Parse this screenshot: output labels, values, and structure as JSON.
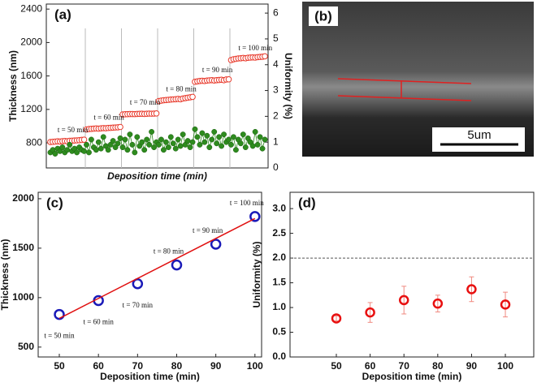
{
  "chart_data": [
    {
      "type": "dual",
      "label": "(a)",
      "xlabel": "Deposition time (min)",
      "ylabel": "Thickness (nm)",
      "y2label": "Uniformity (%)",
      "ylim": [
        500,
        2460
      ],
      "yticks": [
        800,
        1200,
        1600,
        2000,
        2400
      ],
      "y2lim": [
        0,
        6.35
      ],
      "y2ticks": [
        0,
        1,
        2,
        3,
        4,
        5,
        6
      ],
      "annotations": [
        "t = 50 min",
        "t = 60 min",
        "t = 70 min",
        "t = 80 min",
        "t = 90 min",
        "t = 100 min"
      ],
      "series": [
        {
          "color": "#e8392b",
          "values": [
            810,
            812,
            815,
            818,
            816,
            820,
            822,
            820,
            824,
            826,
            828,
            830,
            832,
            835,
            838,
            960,
            965,
            968,
            970,
            972,
            970,
            974,
            976,
            975,
            978,
            980,
            982,
            984,
            986,
            990,
            1140,
            1142,
            1143,
            1145,
            1145,
            1144,
            1146,
            1147,
            1148,
            1146,
            1148,
            1150,
            1149,
            1150,
            1152,
            1300,
            1305,
            1310,
            1312,
            1315,
            1318,
            1320,
            1322,
            1325,
            1322,
            1330,
            1335,
            1340,
            1345,
            1350,
            1530,
            1535,
            1540,
            1542,
            1540,
            1545,
            1548,
            1550,
            1546,
            1550,
            1552,
            1555,
            1550,
            1558,
            1560,
            1790,
            1800,
            1805,
            1810,
            1812,
            1815,
            1812,
            1818,
            1820,
            1822,
            1820,
            1825,
            1828,
            1830,
            1835
          ]
        },
        {
          "color": "#2e8b1e",
          "axis": "y2",
          "values": [
            0.6,
            0.7,
            0.55,
            0.75,
            0.65,
            0.8,
            0.6,
            0.7,
            0.9,
            0.65,
            0.75,
            0.6,
            0.8,
            0.7,
            0.65,
            0.9,
            0.6,
            1.1,
            0.8,
            0.7,
            1.0,
            0.75,
            1.2,
            0.85,
            0.7,
            0.9,
            1.05,
            0.8,
            0.95,
            1.15,
            0.8,
            1.1,
            0.7,
            1.3,
            0.9,
            0.6,
            1.2,
            0.85,
            1.0,
            0.7,
            1.1,
            0.9,
            1.4,
            0.8,
            1.0,
            0.9,
            1.1,
            0.7,
            1.0,
            0.8,
            1.2,
            0.95,
            0.75,
            1.1,
            0.85,
            1.3,
            0.9,
            1.05,
            0.8,
            1.0,
            1.5,
            1.2,
            0.9,
            1.35,
            1.0,
            1.25,
            0.8,
            1.1,
            1.4,
            0.95,
            1.2,
            0.85,
            1.3,
            1.0,
            1.1,
            0.9,
            1.2,
            0.7,
            1.1,
            0.95,
            1.3,
            0.8,
            1.15,
            1.0,
            0.85,
            1.4,
            0.9,
            1.2,
            0.75,
            1.1
          ]
        }
      ]
    },
    {
      "type": "fit",
      "label": "(c)",
      "xlabel": "Deposition time (min)",
      "ylabel": "Thickness (nm)",
      "xlim": [
        44.6,
        101.7
      ],
      "xticks": [
        50,
        60,
        70,
        80,
        90,
        100
      ],
      "ylim": [
        400,
        2065
      ],
      "yticks": [
        500,
        1000,
        1500,
        2000
      ],
      "x": [
        50,
        60,
        70,
        80,
        90,
        100
      ],
      "annotations": [
        "t = 50 min",
        "t = 60 min",
        "t = 70 min",
        "t = 80 min",
        "t = 90 min",
        "t = 100 min"
      ],
      "series": [
        {
          "color": "#1a1ab8",
          "values": [
            830,
            970,
            1140,
            1330,
            1540,
            1820
          ]
        },
        {
          "type": "line",
          "color": "#e01010",
          "x": [
            50,
            100
          ],
          "values": [
            790,
            1800
          ]
        }
      ]
    },
    {
      "type": "errorbar",
      "label": "(d)",
      "xlabel": "Deposition time (min)",
      "ylabel": "Uniformity (%)",
      "xlim": [
        36.3,
        108.4
      ],
      "xticks": [
        50,
        60,
        70,
        80,
        90,
        100
      ],
      "ylim": [
        0,
        3.33
      ],
      "yticks": [
        {
          "value": 0,
          "label": "0.0"
        },
        {
          "value": 0.5,
          "label": "0.5"
        },
        {
          "value": 1,
          "label": "1.0"
        },
        {
          "value": 1.5,
          "label": "1.5"
        },
        {
          "value": 2,
          "label": "2.0"
        },
        {
          "value": 2.5,
          "label": "2.5"
        },
        {
          "value": 3,
          "label": "3.0"
        }
      ],
      "x": [
        50,
        60,
        70,
        80,
        90,
        100
      ],
      "reference_line": 2,
      "reference_color": "#555555",
      "series": [
        {
          "color": "#e81010",
          "values": [
            0.78,
            0.9,
            1.15,
            1.08,
            1.37,
            1.06
          ],
          "errors": [
            0.05,
            0.2,
            0.28,
            0.17,
            0.25,
            0.25
          ],
          "error_color": "#f08a80"
        }
      ]
    }
  ],
  "image": {
    "label": "(b)",
    "scale_bar": "5um"
  }
}
